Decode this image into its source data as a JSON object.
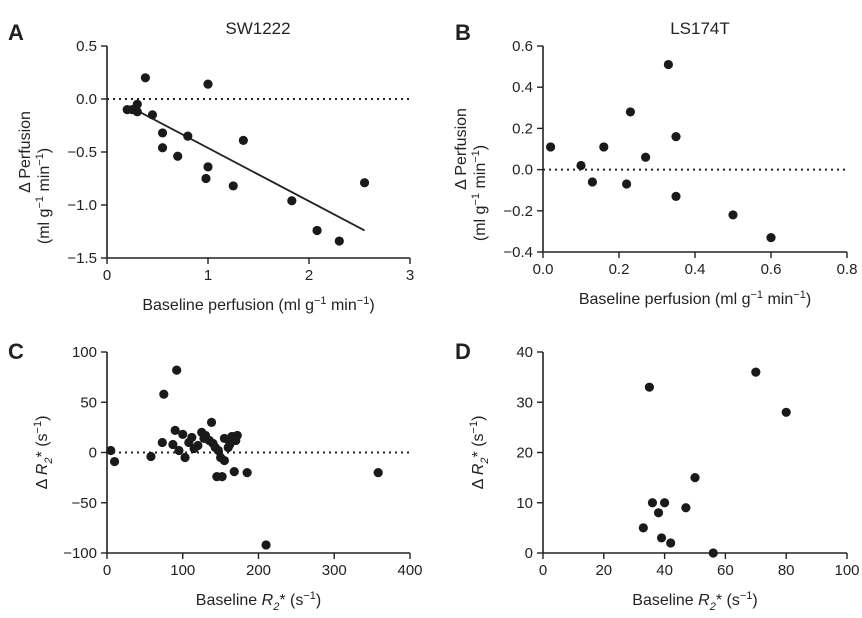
{
  "chart_data": [
    {
      "panel": "A",
      "title": "SW1222",
      "type": "scatter",
      "xlim": [
        0,
        3
      ],
      "ylim": [
        -1.5,
        0.5
      ],
      "xticks": [
        "0",
        "1",
        "2",
        "3"
      ],
      "yticks": [
        "−1.5",
        "−1.0",
        "−0.5",
        "0.0",
        "0.5"
      ],
      "xlabel": {
        "text": "Baseline perfusion (ml g",
        "sup1": "−1",
        "mid": " min",
        "sup2": "−1",
        "end": ")"
      },
      "ylabel": {
        "line1": "Δ Perfusion",
        "line2_text": "(ml g",
        "sup1": "−1",
        "mid": " min",
        "sup2": "−1",
        "end": ")"
      },
      "reference_line_y": 0,
      "fit_line": [
        [
          0.22,
          -0.07
        ],
        [
          2.55,
          -1.24
        ]
      ],
      "points": [
        [
          0.2,
          -0.1
        ],
        [
          0.25,
          -0.1
        ],
        [
          0.3,
          -0.05
        ],
        [
          0.3,
          -0.12
        ],
        [
          0.38,
          0.2
        ],
        [
          0.45,
          -0.15
        ],
        [
          0.55,
          -0.32
        ],
        [
          0.55,
          -0.46
        ],
        [
          0.7,
          -0.54
        ],
        [
          0.8,
          -0.35
        ],
        [
          0.98,
          -0.75
        ],
        [
          1.0,
          -0.64
        ],
        [
          1.0,
          0.14
        ],
        [
          1.25,
          -0.82
        ],
        [
          1.35,
          -0.39
        ],
        [
          1.83,
          -0.96
        ],
        [
          2.08,
          -1.24
        ],
        [
          2.3,
          -1.34
        ],
        [
          2.55,
          -0.79
        ]
      ]
    },
    {
      "panel": "B",
      "title": "LS174T",
      "type": "scatter",
      "xlim": [
        0,
        0.8
      ],
      "ylim": [
        -0.4,
        0.6
      ],
      "xticks": [
        "0.0",
        "0.2",
        "0.4",
        "0.6",
        "0.8"
      ],
      "yticks": [
        "−0.4",
        "−0.2",
        "0.0",
        "0.2",
        "0.4",
        "0.6"
      ],
      "xlabel": {
        "text": "Baseline perfusion (ml g",
        "sup1": "−1",
        "mid": " min",
        "sup2": "−1",
        "end": ")"
      },
      "ylabel": {
        "line1": "Δ Perfusion",
        "line2_text": "(ml g",
        "sup1": "−1",
        "mid": " min",
        "sup2": "−1",
        "end": ")"
      },
      "reference_line_y": 0,
      "points": [
        [
          0.02,
          0.11
        ],
        [
          0.1,
          0.02
        ],
        [
          0.13,
          -0.06
        ],
        [
          0.16,
          0.11
        ],
        [
          0.22,
          -0.07
        ],
        [
          0.23,
          0.28
        ],
        [
          0.27,
          0.06
        ],
        [
          0.33,
          0.51
        ],
        [
          0.35,
          0.16
        ],
        [
          0.35,
          -0.13
        ],
        [
          0.5,
          -0.22
        ],
        [
          0.6,
          -0.33
        ]
      ]
    },
    {
      "panel": "C",
      "type": "scatter",
      "xlim": [
        0,
        400
      ],
      "ylim": [
        -100,
        100
      ],
      "xticks": [
        "0",
        "100",
        "200",
        "300",
        "400"
      ],
      "yticks": [
        "−100",
        "−50",
        "0",
        "50",
        "100"
      ],
      "xlabel": {
        "pre": "Baseline ",
        "var": "R",
        "sub": "2",
        "post": "* (s",
        "sup": "−1",
        "end": ")"
      },
      "ylabel": {
        "pre": "Δ ",
        "var": "R",
        "sub": "2",
        "post": "* (s",
        "sup": "−1",
        "end": ")"
      },
      "reference_line_y": 0,
      "points": [
        [
          5,
          2
        ],
        [
          10,
          -9
        ],
        [
          58,
          -4
        ],
        [
          73,
          10
        ],
        [
          75,
          58
        ],
        [
          87,
          8
        ],
        [
          90,
          22
        ],
        [
          92,
          82
        ],
        [
          95,
          2
        ],
        [
          100,
          18
        ],
        [
          103,
          -5
        ],
        [
          108,
          10
        ],
        [
          112,
          15
        ],
        [
          115,
          4
        ],
        [
          120,
          7
        ],
        [
          125,
          20
        ],
        [
          128,
          14
        ],
        [
          130,
          17
        ],
        [
          135,
          12
        ],
        [
          138,
          30
        ],
        [
          140,
          9
        ],
        [
          143,
          5
        ],
        [
          145,
          -24
        ],
        [
          147,
          2
        ],
        [
          150,
          -5
        ],
        [
          152,
          -24
        ],
        [
          155,
          -8
        ],
        [
          155,
          14
        ],
        [
          160,
          5
        ],
        [
          162,
          8
        ],
        [
          165,
          16
        ],
        [
          168,
          -19
        ],
        [
          170,
          12
        ],
        [
          172,
          17
        ],
        [
          185,
          -20
        ],
        [
          210,
          -92
        ],
        [
          358,
          -20
        ]
      ]
    },
    {
      "panel": "D",
      "type": "scatter",
      "xlim": [
        0,
        100
      ],
      "ylim": [
        0,
        40
      ],
      "xticks": [
        "0",
        "20",
        "40",
        "60",
        "80",
        "100"
      ],
      "yticks": [
        "0",
        "10",
        "20",
        "30",
        "40"
      ],
      "xlabel": {
        "pre": "Baseline ",
        "var": "R",
        "sub": "2",
        "post": "* (s",
        "sup": "−1",
        "end": ")"
      },
      "ylabel": {
        "pre": "Δ ",
        "var": "R",
        "sub": "2",
        "post": "* (s",
        "sup": "−1",
        "end": ")"
      },
      "points": [
        [
          33,
          5
        ],
        [
          35,
          33
        ],
        [
          36,
          10
        ],
        [
          38,
          8
        ],
        [
          39,
          3
        ],
        [
          40,
          10
        ],
        [
          42,
          2
        ],
        [
          47,
          9
        ],
        [
          50,
          15
        ],
        [
          56,
          0
        ],
        [
          70,
          36
        ],
        [
          80,
          28
        ]
      ]
    }
  ]
}
